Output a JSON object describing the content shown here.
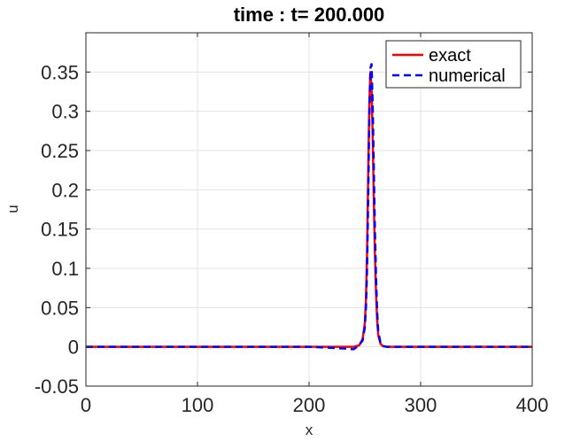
{
  "chart_data": {
    "type": "line",
    "title": "time : t= 200.000",
    "xlabel": "x",
    "ylabel": "u",
    "xlim": [
      0,
      400
    ],
    "ylim": [
      -0.05,
      0.4
    ],
    "xticks": [
      0,
      100,
      200,
      300,
      400
    ],
    "xtick_labels": [
      "0",
      "100",
      "200",
      "300",
      "400"
    ],
    "yticks": [
      -0.05,
      0,
      0.05,
      0.1,
      0.15,
      0.2,
      0.25,
      0.3,
      0.35
    ],
    "ytick_labels": [
      "-0.05",
      "0",
      "0.05",
      "0.1",
      "0.15",
      "0.2",
      "0.25",
      "0.3",
      "0.35"
    ],
    "grid": true,
    "legend": {
      "position": "top-right"
    },
    "series": [
      {
        "name": "exact",
        "color": "#ff0000",
        "style": "solid",
        "x": [
          0,
          200,
          240,
          245,
          248,
          250,
          251,
          252,
          253,
          254,
          255,
          256,
          257,
          258,
          259,
          260,
          261,
          262,
          264,
          266,
          270,
          300,
          400
        ],
        "y": [
          0,
          0,
          0,
          0.002,
          0.01,
          0.03,
          0.06,
          0.12,
          0.22,
          0.31,
          0.35,
          0.33,
          0.27,
          0.19,
          0.12,
          0.07,
          0.035,
          0.015,
          0.004,
          0.001,
          0,
          0,
          0
        ]
      },
      {
        "name": "numerical",
        "color": "#0000ff",
        "style": "dashed",
        "x": [
          0,
          200,
          230,
          240,
          244,
          248,
          250,
          251,
          252,
          253,
          254,
          255,
          256,
          257,
          258,
          259,
          260,
          261,
          262,
          264,
          266,
          270,
          300,
          400
        ],
        "y": [
          0,
          0,
          -0.002,
          -0.003,
          0.001,
          0.008,
          0.025,
          0.05,
          0.1,
          0.19,
          0.29,
          0.355,
          0.36,
          0.31,
          0.23,
          0.15,
          0.09,
          0.045,
          0.02,
          0.005,
          0.001,
          0,
          0,
          0
        ]
      }
    ]
  }
}
